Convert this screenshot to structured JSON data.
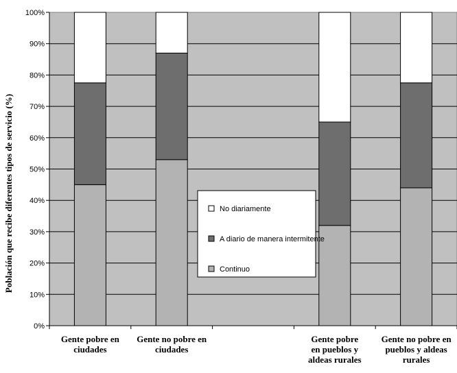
{
  "chart_data": {
    "type": "bar",
    "stacked": true,
    "ylabel": "Población que recibe diferentes tipos de servicio (%)",
    "xlabel": "",
    "ylim": [
      0,
      100
    ],
    "yticks": [
      "0%",
      "10%",
      "20%",
      "30%",
      "40%",
      "50%",
      "60%",
      "70%",
      "80%",
      "90%",
      "100%"
    ],
    "grid": true,
    "legend_position": "center",
    "categories": [
      [
        "Gente pobre en",
        "ciudades"
      ],
      [
        "Gente no pobre en",
        "ciudades"
      ],
      [
        "",
        ""
      ],
      [
        "Gente pobre",
        "en pueblos y",
        "aldeas rurales"
      ],
      [
        "Gente no pobre en",
        "pueblos y aldeas",
        "rurales"
      ]
    ],
    "series": [
      {
        "name": "Continuo",
        "color": "#b3b3b3",
        "values": [
          45,
          53,
          null,
          32,
          44
        ]
      },
      {
        "name": "A diario de manera intermitente",
        "color": "#6e6e6e",
        "values": [
          32.5,
          34,
          null,
          33,
          33.5
        ]
      },
      {
        "name": "No diariamente",
        "color": "#ffffff",
        "values": [
          22.5,
          13,
          null,
          35,
          22.5
        ]
      }
    ],
    "legend_order": [
      "No diariamente",
      "A diario de manera intermitente",
      "Continuo"
    ],
    "plot_background": "#c0c0c0"
  }
}
